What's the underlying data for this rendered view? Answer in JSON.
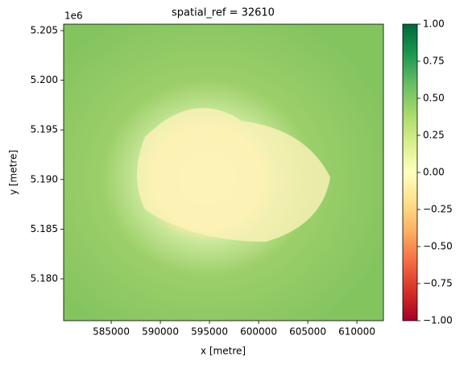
{
  "chart_data": {
    "type": "raster",
    "title": "spatial_ref = 32610",
    "xlabel": "x [metre]",
    "ylabel": "y [metre]",
    "y_offset_label": "1e6",
    "xlim": [
      580160,
      612700
    ],
    "ylim": [
      5175780,
      5205650
    ],
    "xticks": [
      585000,
      590000,
      595000,
      600000,
      605000,
      610000
    ],
    "yticks": [
      {
        "value": 5180000,
        "label": "5.180"
      },
      {
        "value": 5185000,
        "label": "5.185"
      },
      {
        "value": 5190000,
        "label": "5.190"
      },
      {
        "value": 5195000,
        "label": "5.195"
      },
      {
        "value": 5200000,
        "label": "5.200"
      },
      {
        "value": 5205000,
        "label": "5.205"
      }
    ],
    "colorbar": {
      "colormap": "RdYlGn",
      "clim": [
        -1,
        1
      ],
      "ticks": [
        {
          "value": -1,
          "label": "−1.00"
        },
        {
          "value": -0.75,
          "label": "−0.75"
        },
        {
          "value": -0.5,
          "label": "−0.50"
        },
        {
          "value": -0.25,
          "label": "−0.25"
        },
        {
          "value": 0,
          "label": "0.00"
        },
        {
          "value": 0.25,
          "label": "0.25"
        },
        {
          "value": 0.5,
          "label": "0.50"
        },
        {
          "value": 0.75,
          "label": "0.75"
        },
        {
          "value": 1,
          "label": "1.00"
        }
      ]
    }
  }
}
